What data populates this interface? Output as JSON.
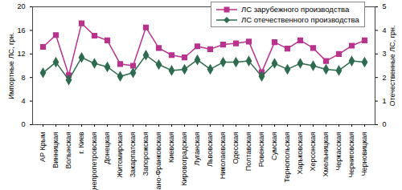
{
  "chart_data": {
    "type": "line",
    "categories": [
      "АР Крым",
      "Винницкая",
      "Волынская",
      "г. Киев",
      "Днепропетровская",
      "Донецкая",
      "Житомирская",
      "Закарпатская",
      "Запорожская",
      "Ивано-Франковская",
      "Киевская",
      "Кировоградская",
      "Луганская",
      "Львовская",
      "Николаевская",
      "Одесская",
      "Полтавская",
      "Ровенская",
      "Сумская",
      "Тернопольская",
      "Харьковская",
      "Херсонская",
      "Хмельницкая",
      "Черкасская",
      "Черниговская",
      "Черновицкая"
    ],
    "series": [
      {
        "name": "ЛС зарубежного производства",
        "color": "#b8338c",
        "marker": "square",
        "values": [
          13.2,
          15.2,
          8.4,
          17.2,
          15.1,
          14.3,
          10.3,
          10.0,
          16.5,
          13.0,
          11.8,
          11.4,
          13.3,
          12.8,
          13.6,
          13.8,
          14.1,
          8.9,
          14.0,
          12.9,
          14.3,
          13.0,
          10.8,
          12.0,
          13.4,
          14.3
        ]
      },
      {
        "name": "ЛС отечественного производства",
        "color": "#2e6b4f",
        "marker": "diamond",
        "axis": "y2",
        "values": [
          2.2,
          2.65,
          1.9,
          2.85,
          2.6,
          2.45,
          2.05,
          2.2,
          2.95,
          2.55,
          2.3,
          2.35,
          2.75,
          2.35,
          2.65,
          2.65,
          2.7,
          2.05,
          2.6,
          2.35,
          2.6,
          2.5,
          2.35,
          2.3,
          2.7,
          2.65
        ]
      }
    ],
    "y_label": "Импортные ЛС, грн.",
    "y2_label": "Отечественные ЛС, грн.",
    "ylim": [
      0,
      20
    ],
    "yticks": [
      0,
      4,
      8,
      12,
      16,
      20
    ],
    "y2lim": [
      0,
      5
    ],
    "y2ticks": [
      0,
      1,
      2,
      3,
      4,
      5
    ],
    "legend": "top-right",
    "grid": false
  }
}
